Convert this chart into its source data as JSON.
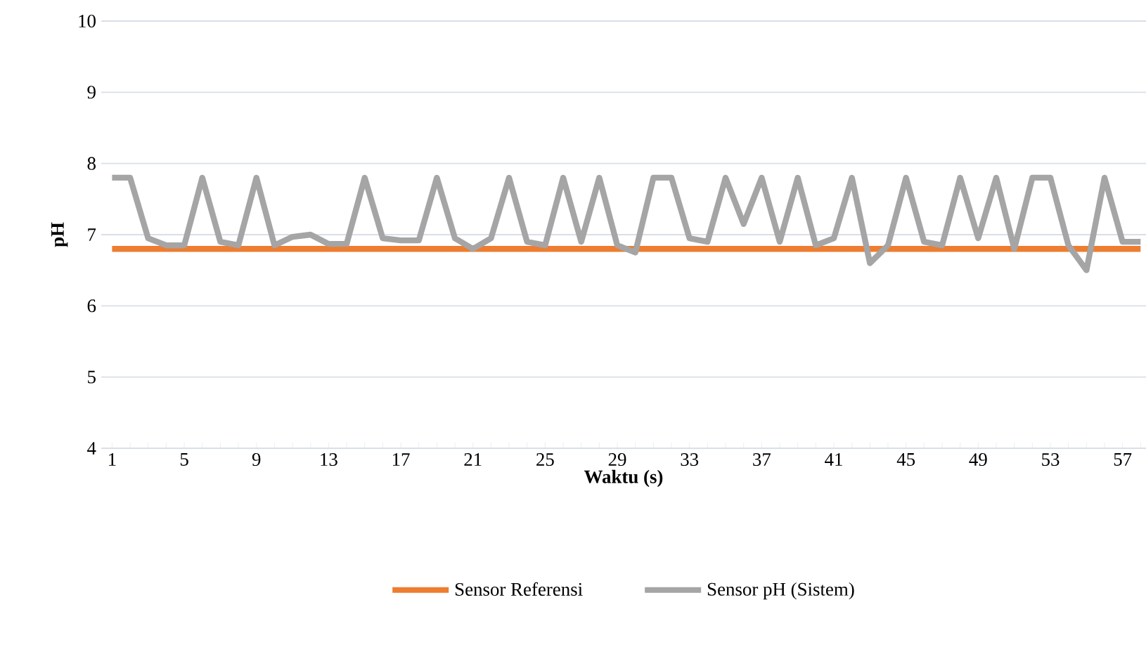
{
  "chart_data": {
    "type": "line",
    "xlabel": "Waktu (s)",
    "ylabel": "pH",
    "categories": [
      "1",
      null,
      null,
      null,
      "5",
      null,
      null,
      null,
      "9",
      null,
      null,
      null,
      "13",
      null,
      null,
      null,
      "17",
      null,
      null,
      null,
      "21",
      null,
      null,
      null,
      "25",
      null,
      null,
      null,
      "29",
      null,
      null,
      null,
      "33",
      null,
      null,
      null,
      "37",
      null,
      null,
      null,
      "41",
      null,
      null,
      null,
      "45",
      null,
      null,
      null,
      "49",
      null,
      null,
      null,
      "53",
      null,
      null,
      null,
      "57",
      null
    ],
    "series": [
      {
        "name": "Sensor Referensi",
        "color": "#ed7d31",
        "values": [
          6.8,
          6.8,
          6.8,
          6.8,
          6.8,
          6.8,
          6.8,
          6.8,
          6.8,
          6.8,
          6.8,
          6.8,
          6.8,
          6.8,
          6.8,
          6.8,
          6.8,
          6.8,
          6.8,
          6.8,
          6.8,
          6.8,
          6.8,
          6.8,
          6.8,
          6.8,
          6.8,
          6.8,
          6.8,
          6.8,
          6.8,
          6.8,
          6.8,
          6.8,
          6.8,
          6.8,
          6.8,
          6.8,
          6.8,
          6.8,
          6.8,
          6.8,
          6.8,
          6.8,
          6.8,
          6.8,
          6.8,
          6.8,
          6.8,
          6.8,
          6.8,
          6.8,
          6.8,
          6.8,
          6.8,
          6.8,
          6.8,
          6.8
        ]
      },
      {
        "name": "Sensor pH (Sistem)",
        "color": "#a5a5a5",
        "values": [
          7.8,
          7.8,
          6.95,
          6.85,
          6.85,
          7.8,
          6.9,
          6.85,
          7.8,
          6.85,
          6.97,
          7.0,
          6.87,
          6.87,
          7.8,
          6.95,
          6.92,
          6.92,
          7.8,
          6.95,
          6.8,
          6.95,
          7.8,
          6.9,
          6.85,
          7.8,
          6.9,
          7.8,
          6.85,
          6.75,
          7.8,
          7.8,
          6.95,
          6.9,
          7.8,
          7.15,
          7.8,
          6.9,
          7.8,
          6.85,
          6.95,
          7.8,
          6.6,
          6.85,
          7.8,
          6.9,
          6.85,
          7.8,
          6.95,
          7.8,
          6.8,
          7.8,
          7.8,
          6.85,
          6.5,
          7.8,
          6.9,
          6.9
        ]
      }
    ],
    "ylim": [
      4,
      10
    ],
    "yticks": [
      4,
      5,
      6,
      7,
      8,
      9,
      10
    ],
    "grid": "y",
    "legend": "bottom",
    "marker": "none",
    "line_style": "solid"
  }
}
